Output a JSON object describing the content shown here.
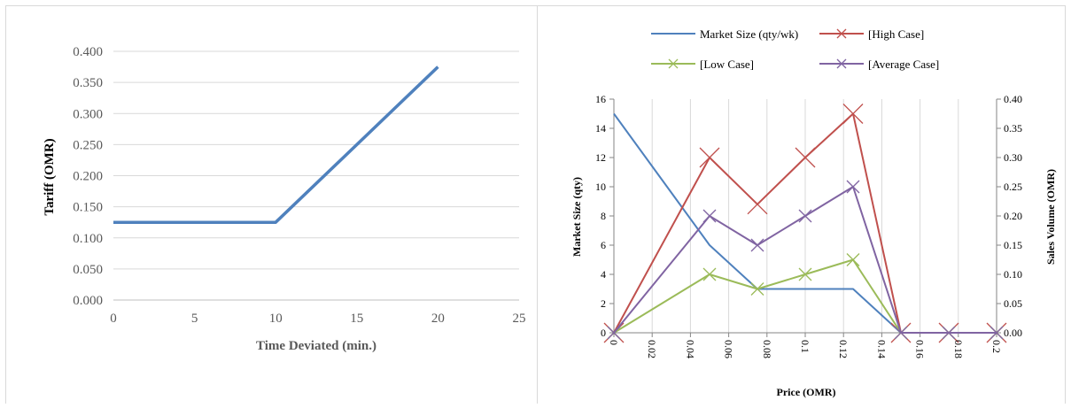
{
  "chart_data": [
    {
      "type": "line",
      "title": "",
      "xlabel": "Time Deviated (min.)",
      "ylabel": "Tariff  (OMR)",
      "xlim": [
        0,
        25
      ],
      "ylim": [
        0,
        0.4
      ],
      "x_ticks": [
        "0",
        "5",
        "10",
        "15",
        "20",
        "25"
      ],
      "y_ticks": [
        "0.000",
        "0.050",
        "0.100",
        "0.150",
        "0.200",
        "0.250",
        "0.300",
        "0.350",
        "0.400"
      ],
      "grid": "horizontal",
      "colors": {
        "line": "#4f81bd",
        "grid": "#d9d9d9",
        "axis": "#bfbfbf",
        "text": "#595959"
      },
      "series": [
        {
          "x": [
            0,
            10,
            20
          ],
          "y": [
            0.125,
            0.125,
            0.375
          ]
        }
      ]
    },
    {
      "type": "line",
      "title": "",
      "xlabel": "Price (OMR)",
      "ylabel": "Market Size (qty)",
      "y2label": "Sales Volume (OMR)",
      "xlim": [
        0,
        0.2
      ],
      "ylim": [
        0,
        16
      ],
      "y2lim": [
        0,
        0.4
      ],
      "x_ticks": [
        "0",
        "0.02",
        "0.04",
        "0.06",
        "0.08",
        "0.1",
        "0.12",
        "0.14",
        "0.16",
        "0.18",
        "0.2"
      ],
      "y_ticks": [
        "0",
        "2",
        "4",
        "6",
        "8",
        "10",
        "12",
        "14",
        "16"
      ],
      "y2_ticks": [
        "0.00",
        "0.05",
        "0.10",
        "0.15",
        "0.20",
        "0.25",
        "0.30",
        "0.35",
        "0.40"
      ],
      "grid": "vertical",
      "legend": "top",
      "series": [
        {
          "name": "Market Size (qty/wk)",
          "axis": "left",
          "color": "#4f81bd",
          "marker": "none",
          "x": [
            0,
            0.05,
            0.075,
            0.1,
            0.125,
            0.15,
            0.175,
            0.2
          ],
          "y": [
            15,
            6,
            3,
            3,
            3,
            0,
            0,
            0
          ]
        },
        {
          "name": "[High Case]",
          "axis": "right",
          "color": "#c0504d",
          "marker": "x-large",
          "x": [
            0,
            0.05,
            0.075,
            0.1,
            0.125,
            0.15,
            0.175,
            0.2
          ],
          "y": [
            0,
            0.3,
            0.22,
            0.3,
            0.375,
            0,
            0,
            0
          ]
        },
        {
          "name": "[Low Case]",
          "axis": "right",
          "color": "#9bbb59",
          "marker": "x",
          "x": [
            0,
            0.05,
            0.075,
            0.1,
            0.125,
            0.15,
            0.175,
            0.2
          ],
          "y": [
            0,
            0.1,
            0.075,
            0.1,
            0.125,
            0,
            0,
            0
          ]
        },
        {
          "name": "[Average Case]",
          "axis": "right",
          "color": "#8064a2",
          "marker": "x",
          "x": [
            0,
            0.05,
            0.075,
            0.1,
            0.125,
            0.15,
            0.175,
            0.2
          ],
          "y": [
            0,
            0.2,
            0.15,
            0.2,
            0.25,
            0,
            0,
            0
          ]
        }
      ]
    }
  ]
}
